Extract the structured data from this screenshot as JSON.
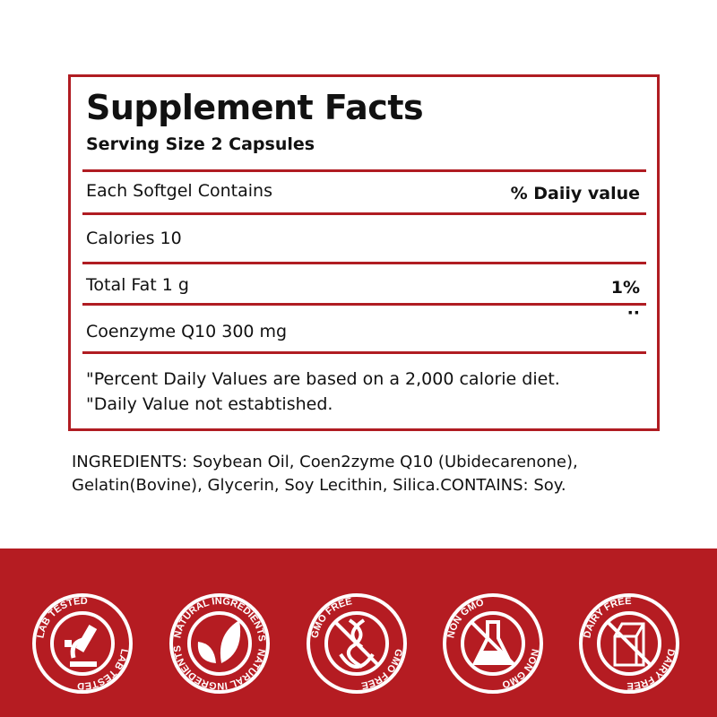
{
  "panel": {
    "title": "Supplement Facts",
    "serving": "Serving Size 2 Capsules",
    "header_left": "Each Softgel Contains",
    "header_right": "% Daiiy value",
    "rows": [
      {
        "label": "Calories 10",
        "value": ""
      },
      {
        "label": "Total Fat 1 g",
        "value": "1%"
      },
      {
        "label": "Coenzyme Q10 300 mg",
        "value": "··"
      }
    ],
    "footnotes": [
      "\"Percent Daily Values are based on a 2,000 calorie diet.",
      "\"Daily Value not estabtished."
    ]
  },
  "ingredients": "INGREDIENTS: Soybean Oil, Coen2zyme Q10 (Ubidecarenone), Gelatin(Bovine), Glycerin, Soy Lecithin, Silica.CONTAINS: Soy.",
  "colors": {
    "accent": "#b01c22",
    "band": "#b51c22"
  },
  "badges": [
    {
      "text": "LAB TESTED",
      "icon": "microscope-icon"
    },
    {
      "text": "NATURAL INGREDIENTS",
      "icon": "leaf-icon"
    },
    {
      "text": "GMO FREE",
      "icon": "dna-icon"
    },
    {
      "text": "NON GMO",
      "icon": "flask-icon"
    },
    {
      "text": "DAIRY FREE",
      "icon": "milk-carton-icon"
    }
  ]
}
